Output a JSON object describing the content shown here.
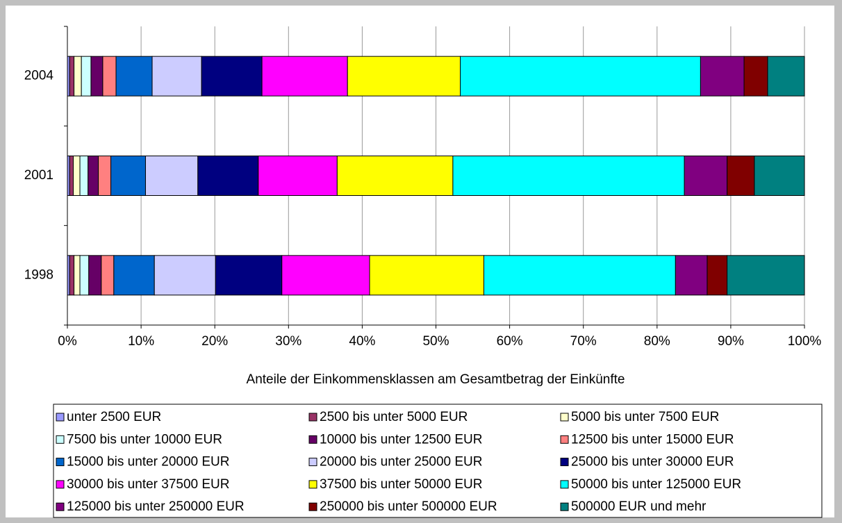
{
  "chart_data": {
    "type": "stacked-bar-horizontal",
    "x_label": "Anteile der Einkommensklassen am Gesamtbetrag der Einkünfte",
    "categories": [
      "1998",
      "2001",
      "2004"
    ],
    "xlim": [
      0,
      100
    ],
    "xticks": [
      {
        "value": 0,
        "label": "0%"
      },
      {
        "value": 10,
        "label": "10%"
      },
      {
        "value": 20,
        "label": "20%"
      },
      {
        "value": 30,
        "label": "30%"
      },
      {
        "value": 40,
        "label": "40%"
      },
      {
        "value": 50,
        "label": "50%"
      },
      {
        "value": 60,
        "label": "60%"
      },
      {
        "value": 70,
        "label": "70%"
      },
      {
        "value": 80,
        "label": "80%"
      },
      {
        "value": 90,
        "label": "90%"
      },
      {
        "value": 100,
        "label": "100%"
      }
    ],
    "grid": true,
    "legend": "bottom",
    "series": [
      {
        "name": "unter 2500 EUR",
        "color": "#9999ff",
        "values": [
          0.3,
          0.3,
          0.3
        ]
      },
      {
        "name": "2500 bis unter 5000 EUR",
        "color": "#993366",
        "values": [
          0.6,
          0.5,
          0.6
        ]
      },
      {
        "name": "5000 bis unter 7500 EUR",
        "color": "#ffffcc",
        "values": [
          0.8,
          0.9,
          1.0
        ]
      },
      {
        "name": "7500 bis unter 10000 EUR",
        "color": "#ccffff",
        "values": [
          1.2,
          1.1,
          1.3
        ]
      },
      {
        "name": "10000 bis unter 12500 EUR",
        "color": "#660066",
        "values": [
          1.7,
          1.4,
          1.6
        ]
      },
      {
        "name": "12500 bis unter 15000 EUR",
        "color": "#ff8080",
        "values": [
          1.7,
          1.7,
          1.8
        ]
      },
      {
        "name": "15000 bis unter 20000 EUR",
        "color": "#0066cc",
        "values": [
          5.5,
          4.7,
          4.9
        ]
      },
      {
        "name": "20000 bis unter 25000 EUR",
        "color": "#ccccff",
        "values": [
          8.3,
          7.1,
          6.7
        ]
      },
      {
        "name": "25000 bis unter 30000 EUR",
        "color": "#000080",
        "values": [
          9.0,
          8.2,
          8.2
        ]
      },
      {
        "name": "30000 bis unter 37500 EUR",
        "color": "#ff00ff",
        "values": [
          11.9,
          10.7,
          11.6
        ]
      },
      {
        "name": "37500 bis unter 50000 EUR",
        "color": "#ffff00",
        "values": [
          15.5,
          15.7,
          15.3
        ]
      },
      {
        "name": "50000 bis unter 125000 EUR",
        "color": "#00ffff",
        "values": [
          26.0,
          31.4,
          32.6
        ]
      },
      {
        "name": "125000 bis unter 250000 EUR",
        "color": "#800080",
        "values": [
          4.3,
          5.8,
          5.9
        ]
      },
      {
        "name": "250000 bis unter 500000 EUR",
        "color": "#800000",
        "values": [
          2.7,
          3.7,
          3.2
        ]
      },
      {
        "name": "500000 EUR und mehr",
        "color": "#008080",
        "values": [
          10.5,
          6.8,
          5.0
        ]
      }
    ]
  }
}
